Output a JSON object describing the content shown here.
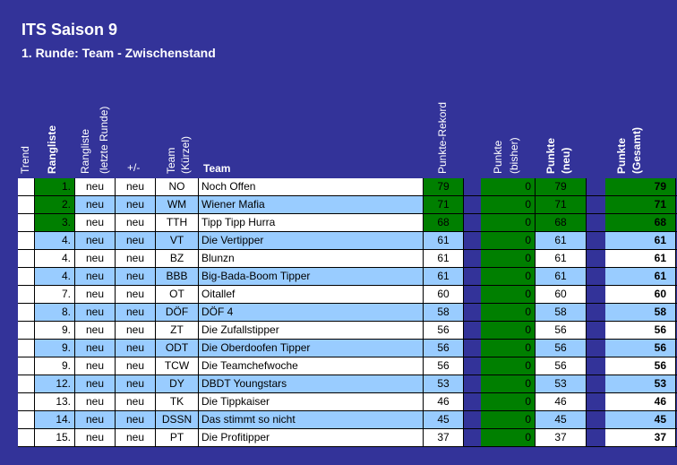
{
  "title": "ITS Saison 9",
  "subtitle": "1. Runde: Team - Zwischenstand",
  "headers": {
    "trend": "Trend",
    "rangliste": "Rangliste",
    "rangliste_letzte_1": "Rangliste",
    "rangliste_letzte_2": "(letzte Runde)",
    "plusminus": "+/-",
    "team_kuerzel_1": "Team",
    "team_kuerzel_2": "(Kürzel)",
    "team": "Team",
    "rekord": "Punkte-Rekord",
    "bisher_1": "Punkte",
    "bisher_2": "(bisher)",
    "neu_1": "Punkte",
    "neu_2": "(neu)",
    "gesamt_1": "Punkte",
    "gesamt_2": "(Gesamt)"
  },
  "colors": {
    "background": "#333399",
    "row_white": "#ffffff",
    "row_blue": "#99ccff",
    "green": "#007f00"
  },
  "rows": [
    {
      "rank": "1.",
      "last": "neu",
      "pm": "neu",
      "code": "NO",
      "name": "Noch Offen",
      "rekord": "79",
      "bisher": "0",
      "neu": "79",
      "gesamt": "79"
    },
    {
      "rank": "2.",
      "last": "neu",
      "pm": "neu",
      "code": "WM",
      "name": "Wiener Mafia",
      "rekord": "71",
      "bisher": "0",
      "neu": "71",
      "gesamt": "71"
    },
    {
      "rank": "3.",
      "last": "neu",
      "pm": "neu",
      "code": "TTH",
      "name": "Tipp Tipp Hurra",
      "rekord": "68",
      "bisher": "0",
      "neu": "68",
      "gesamt": "68"
    },
    {
      "rank": "4.",
      "last": "neu",
      "pm": "neu",
      "code": "VT",
      "name": "Die Vertipper",
      "rekord": "61",
      "bisher": "0",
      "neu": "61",
      "gesamt": "61"
    },
    {
      "rank": "4.",
      "last": "neu",
      "pm": "neu",
      "code": "BZ",
      "name": "Blunzn",
      "rekord": "61",
      "bisher": "0",
      "neu": "61",
      "gesamt": "61"
    },
    {
      "rank": "4.",
      "last": "neu",
      "pm": "neu",
      "code": "BBB",
      "name": "Big-Bada-Boom Tipper",
      "rekord": "61",
      "bisher": "0",
      "neu": "61",
      "gesamt": "61"
    },
    {
      "rank": "7.",
      "last": "neu",
      "pm": "neu",
      "code": "OT",
      "name": "Oitallef",
      "rekord": "60",
      "bisher": "0",
      "neu": "60",
      "gesamt": "60"
    },
    {
      "rank": "8.",
      "last": "neu",
      "pm": "neu",
      "code": "DÖF",
      "name": "DÖF 4",
      "rekord": "58",
      "bisher": "0",
      "neu": "58",
      "gesamt": "58"
    },
    {
      "rank": "9.",
      "last": "neu",
      "pm": "neu",
      "code": "ZT",
      "name": "Die Zufallstipper",
      "rekord": "56",
      "bisher": "0",
      "neu": "56",
      "gesamt": "56"
    },
    {
      "rank": "9.",
      "last": "neu",
      "pm": "neu",
      "code": "ODT",
      "name": "Die Oberdoofen Tipper",
      "rekord": "56",
      "bisher": "0",
      "neu": "56",
      "gesamt": "56"
    },
    {
      "rank": "9.",
      "last": "neu",
      "pm": "neu",
      "code": "TCW",
      "name": "Die Teamchefwoche",
      "rekord": "56",
      "bisher": "0",
      "neu": "56",
      "gesamt": "56"
    },
    {
      "rank": "12.",
      "last": "neu",
      "pm": "neu",
      "code": "DY",
      "name": "DBDT Youngstars",
      "rekord": "53",
      "bisher": "0",
      "neu": "53",
      "gesamt": "53"
    },
    {
      "rank": "13.",
      "last": "neu",
      "pm": "neu",
      "code": "TK",
      "name": "Die Tippkaiser",
      "rekord": "46",
      "bisher": "0",
      "neu": "46",
      "gesamt": "46"
    },
    {
      "rank": "14.",
      "last": "neu",
      "pm": "neu",
      "code": "DSSN",
      "name": "Das stimmt so nicht",
      "rekord": "45",
      "bisher": "0",
      "neu": "45",
      "gesamt": "45"
    },
    {
      "rank": "15.",
      "last": "neu",
      "pm": "neu",
      "code": "PT",
      "name": "Die Profitipper",
      "rekord": "37",
      "bisher": "0",
      "neu": "37",
      "gesamt": "37"
    }
  ]
}
